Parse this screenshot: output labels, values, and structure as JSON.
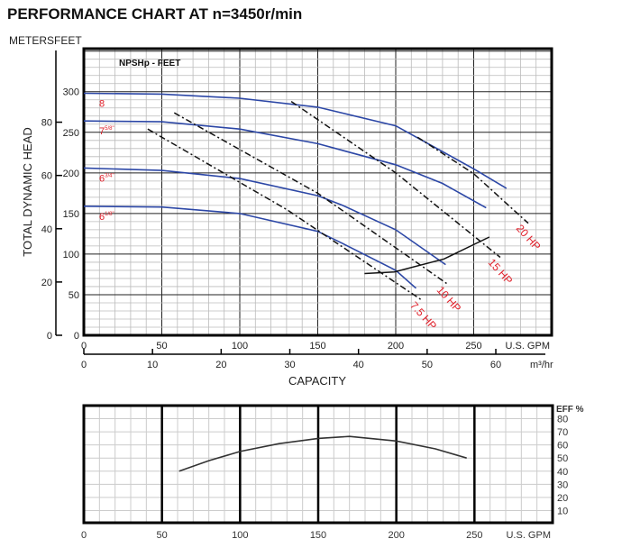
{
  "chart_data": [
    {
      "type": "line",
      "title": "PERFORMANCE CHART AT n=3450r/min",
      "ylabel": "TOTAL DYNAMIC HEAD",
      "xlabel": "CAPACITY",
      "y_units_left": "METERS",
      "y_units_right": "FEET",
      "x_units": "U.S. GPM",
      "x2_units": "m³/hr",
      "annotation": "NPSHp - FEET",
      "xlim": [
        0,
        300
      ],
      "ylim": [
        0,
        353
      ],
      "grid": true,
      "x_ticks": [
        0,
        50,
        100,
        150,
        200,
        250
      ],
      "y_ticks_feet": [
        0,
        50,
        100,
        150,
        200,
        250,
        300
      ],
      "y_ticks_meters": [
        0,
        20,
        40,
        60,
        80
      ],
      "x2_ticks": [
        0,
        10,
        20,
        30,
        40,
        50,
        60
      ],
      "series": [
        {
          "name": "8",
          "label_main": "8",
          "label_sup": "",
          "color": "#2c47a6",
          "x": [
            0,
            50,
            100,
            150,
            200,
            250,
            271
          ],
          "y": [
            298,
            297,
            292,
            281,
            258,
            205,
            181
          ]
        },
        {
          "name": "7 5/8\"",
          "label_main": "7",
          "label_sup": "5/8\"",
          "color": "#2c47a6",
          "x": [
            0,
            50,
            100,
            150,
            200,
            230,
            258
          ],
          "y": [
            264,
            263,
            254,
            236,
            210,
            187,
            157
          ]
        },
        {
          "name": "6 3/4\"",
          "label_main": "6",
          "label_sup": "3/4\"",
          "color": "#2c47a6",
          "x": [
            0,
            50,
            100,
            150,
            166,
            200,
            232
          ],
          "y": [
            206,
            203,
            193,
            172,
            160,
            130,
            87
          ]
        },
        {
          "name": "6 1/8\"",
          "label_main": "6",
          "label_sup": "1/8\"",
          "color": "#2c47a6",
          "x": [
            0,
            50,
            100,
            150,
            166,
            200,
            213
          ],
          "y": [
            159,
            158,
            150,
            128,
            113,
            80,
            58
          ]
        }
      ],
      "power_lines": [
        {
          "name": "20 HP",
          "x": [
            214,
            250,
            285
          ],
          "y": [
            244,
            199,
            138
          ]
        },
        {
          "name": "15 HP",
          "x": [
            133,
            200,
            267
          ],
          "y": [
            288,
            200,
            96
          ]
        },
        {
          "name": "10 HP",
          "x": [
            58,
            150,
            234
          ],
          "y": [
            274,
            175,
            62
          ]
        },
        {
          "name": "7.5 HP",
          "x": [
            41,
            130,
            217
          ],
          "y": [
            254,
            155,
            43
          ]
        }
      ],
      "npsh_curve": {
        "x": [
          180,
          199,
          231,
          260
        ],
        "y": [
          76,
          78,
          94,
          121
        ]
      },
      "label_color": "#e0202a"
    },
    {
      "type": "line",
      "ylabel": "EFF %",
      "x_units": "U.S. GPM",
      "xlim": [
        0,
        300
      ],
      "ylim": [
        0,
        90
      ],
      "grid": true,
      "x_ticks": [
        0,
        50,
        100,
        150,
        200,
        250
      ],
      "y_ticks": [
        10,
        20,
        30,
        40,
        50,
        60,
        70,
        80
      ],
      "series": [
        {
          "x": [
            61,
            80,
            100,
            125,
            150,
            170,
            200,
            225,
            245
          ],
          "y": [
            40,
            48,
            55,
            61,
            65,
            66.5,
            63,
            57,
            50
          ]
        }
      ]
    }
  ]
}
